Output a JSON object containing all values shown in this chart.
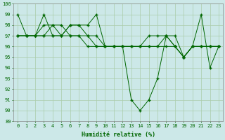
{
  "xlabel": "Humidité relative (%)",
  "background_color": "#cce8e8",
  "grid_color": "#aaccaa",
  "line_color": "#006600",
  "xmin": -0.5,
  "xmax": 23.5,
  "ymin": 89,
  "ymax": 100,
  "series": [
    [
      99,
      97,
      97,
      99,
      97,
      97,
      98,
      98,
      98,
      99,
      96,
      96,
      96,
      91,
      90,
      91,
      93,
      97,
      97,
      95,
      96,
      99,
      94,
      96
    ],
    [
      97,
      97,
      97,
      97,
      98,
      98,
      97,
      97,
      97,
      96,
      96,
      96,
      96,
      96,
      96,
      96,
      96,
      97,
      96,
      95,
      96,
      96,
      96,
      96
    ],
    [
      97,
      97,
      97,
      98,
      98,
      97,
      98,
      98,
      97,
      97,
      96,
      96,
      96,
      96,
      96,
      97,
      97,
      97,
      96,
      95,
      96,
      96,
      96,
      96
    ],
    [
      97,
      97,
      97,
      97,
      97,
      97,
      97,
      97,
      96,
      96,
      96,
      96,
      96,
      96,
      96,
      96,
      96,
      96,
      96,
      95,
      96,
      96,
      96,
      96
    ]
  ],
  "xtick_labels": [
    "0",
    "1",
    "2",
    "3",
    "4",
    "5",
    "6",
    "7",
    "8",
    "9",
    "10",
    "11",
    "12",
    "13",
    "14",
    "15",
    "16",
    "17",
    "18",
    "19",
    "20",
    "21",
    "22",
    "23"
  ],
  "ytick_values": [
    89,
    90,
    91,
    92,
    93,
    94,
    95,
    96,
    97,
    98,
    99,
    100
  ]
}
